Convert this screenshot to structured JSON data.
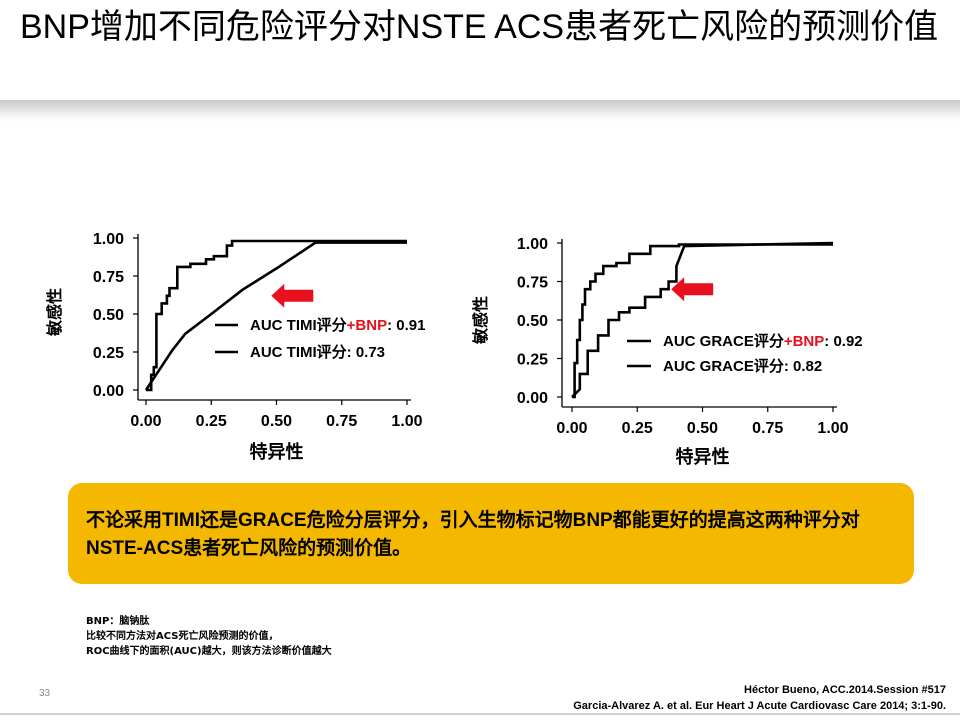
{
  "slide": {
    "title": "BNP增加不同危险评分对NSTE ACS患者死亡风险的预测价值",
    "callout": "不论采用TIMI还是GRACE危险分层评分，引入生物标记物BNP都能更好的提高这两种评分对NSTE-ACS患者死亡风险的预测价值。",
    "notes": [
      "BNP：脑钠肽",
      "比较不同方法对ACS死亡风险预测的价值，",
      "ROC曲线下的面积(AUC)越大，则该方法诊断价值越大"
    ],
    "page_number": "33",
    "references": [
      "Héctor Bueno, ACC.2014.Session #517",
      "Garcia-Alvarez A. et al. Eur Heart J Acute Cardiovasc Care 2014; 3:1-90."
    ]
  },
  "colors": {
    "accent_red": "#e8101c",
    "callout_bg": "#f4b800",
    "curve": "#000000"
  },
  "chart_data": [
    {
      "type": "line",
      "xlabel": "特异性",
      "ylabel": "敏感性",
      "xlim": [
        0,
        1
      ],
      "ylim": [
        0,
        1
      ],
      "xticks": [
        "0.00",
        "0.25",
        "0.50",
        "0.75",
        "1.00"
      ],
      "yticks": [
        "0.00",
        "0.25",
        "0.50",
        "0.75",
        "1.00"
      ],
      "grid": false,
      "legend_position": "bottom-right",
      "arrow": {
        "x": 0.48,
        "y": 0.62,
        "direction": "left"
      },
      "series": [
        {
          "name_parts": [
            "AUC TIMI评分",
            "+BNP",
            ": 0.91"
          ],
          "x": [
            0.0,
            0.02,
            0.02,
            0.03,
            0.03,
            0.04,
            0.04,
            0.06,
            0.06,
            0.08,
            0.08,
            0.09,
            0.09,
            0.12,
            0.12,
            0.17,
            0.17,
            0.23,
            0.23,
            0.26,
            0.26,
            0.31,
            0.31,
            0.33,
            0.33,
            1.0
          ],
          "y": [
            0.0,
            0.0,
            0.1,
            0.1,
            0.15,
            0.15,
            0.5,
            0.5,
            0.57,
            0.57,
            0.62,
            0.62,
            0.67,
            0.67,
            0.81,
            0.81,
            0.83,
            0.83,
            0.86,
            0.86,
            0.88,
            0.88,
            0.95,
            0.95,
            0.98,
            0.98
          ]
        },
        {
          "name_parts": [
            "AUC TIMI评分",
            "",
            ": 0.73"
          ],
          "x": [
            0.0,
            0.05,
            0.1,
            0.15,
            0.25,
            0.37,
            0.5,
            0.65,
            1.0
          ],
          "y": [
            0.0,
            0.13,
            0.26,
            0.37,
            0.5,
            0.66,
            0.8,
            0.97,
            0.97
          ]
        }
      ]
    },
    {
      "type": "line",
      "xlabel": "特异性",
      "ylabel": "敏感性",
      "xlim": [
        0,
        1
      ],
      "ylim": [
        0,
        1
      ],
      "xticks": [
        "0.00",
        "0.25",
        "0.50",
        "0.75",
        "1.00"
      ],
      "yticks": [
        "0.00",
        "0.25",
        "0.50",
        "0.75",
        "1.00"
      ],
      "grid": false,
      "legend_position": "bottom-right",
      "arrow": {
        "x": 0.38,
        "y": 0.7,
        "direction": "left"
      },
      "series": [
        {
          "name_parts": [
            "AUC GRACE评分",
            "+BNP",
            ": 0.92"
          ],
          "x": [
            0.0,
            0.01,
            0.01,
            0.02,
            0.02,
            0.03,
            0.03,
            0.04,
            0.04,
            0.05,
            0.05,
            0.07,
            0.07,
            0.09,
            0.09,
            0.12,
            0.12,
            0.17,
            0.17,
            0.22,
            0.22,
            0.3,
            0.3,
            0.41,
            0.41,
            1.0
          ],
          "y": [
            0.0,
            0.0,
            0.22,
            0.22,
            0.37,
            0.37,
            0.5,
            0.5,
            0.6,
            0.6,
            0.7,
            0.7,
            0.75,
            0.75,
            0.8,
            0.8,
            0.85,
            0.85,
            0.87,
            0.87,
            0.93,
            0.93,
            0.98,
            0.98,
            0.99,
            0.99
          ]
        },
        {
          "name_parts": [
            "AUC GRACE评分",
            "",
            ": 0.82"
          ],
          "x": [
            0.0,
            0.03,
            0.03,
            0.06,
            0.06,
            0.1,
            0.1,
            0.14,
            0.14,
            0.18,
            0.18,
            0.22,
            0.22,
            0.28,
            0.28,
            0.34,
            0.34,
            0.37,
            0.37,
            0.4,
            0.4,
            0.43,
            1.0
          ],
          "y": [
            0.0,
            0.05,
            0.15,
            0.15,
            0.3,
            0.3,
            0.4,
            0.4,
            0.5,
            0.5,
            0.55,
            0.55,
            0.58,
            0.58,
            0.65,
            0.65,
            0.7,
            0.7,
            0.75,
            0.75,
            0.85,
            0.98,
            1.0
          ]
        }
      ]
    }
  ]
}
